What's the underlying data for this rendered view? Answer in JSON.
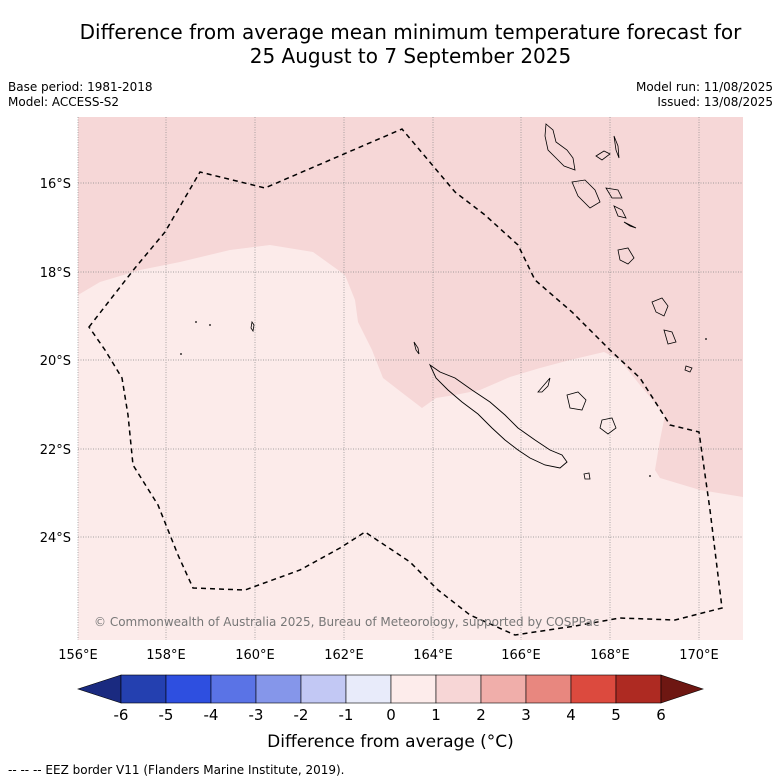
{
  "title_line1": "Difference from average mean minimum temperature forecast for",
  "title_line2": "25 August to 7 September 2025",
  "base_period": "Base period: 1981-2018",
  "model": "Model: ACCESS-S2",
  "model_run": "Model run: 11/08/2025",
  "issued": "Issued: 13/08/2025",
  "copyright": "© Commonwealth of Australia 2025, Bureau of Meteorology, supported by COSPPac",
  "lat_labels": [
    "16°S",
    "18°S",
    "20°S",
    "22°S",
    "24°S"
  ],
  "lon_labels": [
    "156°E",
    "158°E",
    "160°E",
    "162°E",
    "164°E",
    "166°E",
    "168°E",
    "170°E"
  ],
  "colorbar": {
    "ticks": [
      "-6",
      "-5",
      "-4",
      "-3",
      "-2",
      "-1",
      "0",
      "1",
      "2",
      "3",
      "4",
      "5",
      "6"
    ],
    "colors": [
      "#1a2a80",
      "#2440b0",
      "#2e4fe0",
      "#5a73e6",
      "#8596ea",
      "#c2c8f4",
      "#e8ebfa",
      "#fdeceb",
      "#f7d6d6",
      "#f0aeaa",
      "#e8877f",
      "#dc4a3e",
      "#ae2a22",
      "#6e1712"
    ],
    "label": "Difference from average (°C)"
  },
  "footer": "-- -- -- EEZ border V11 (Flanders Marine Institute, 2019).",
  "map_colors": {
    "class_0_1": "#fcebea",
    "class_1_2": "#f6d7d7",
    "grid": "#888888"
  }
}
